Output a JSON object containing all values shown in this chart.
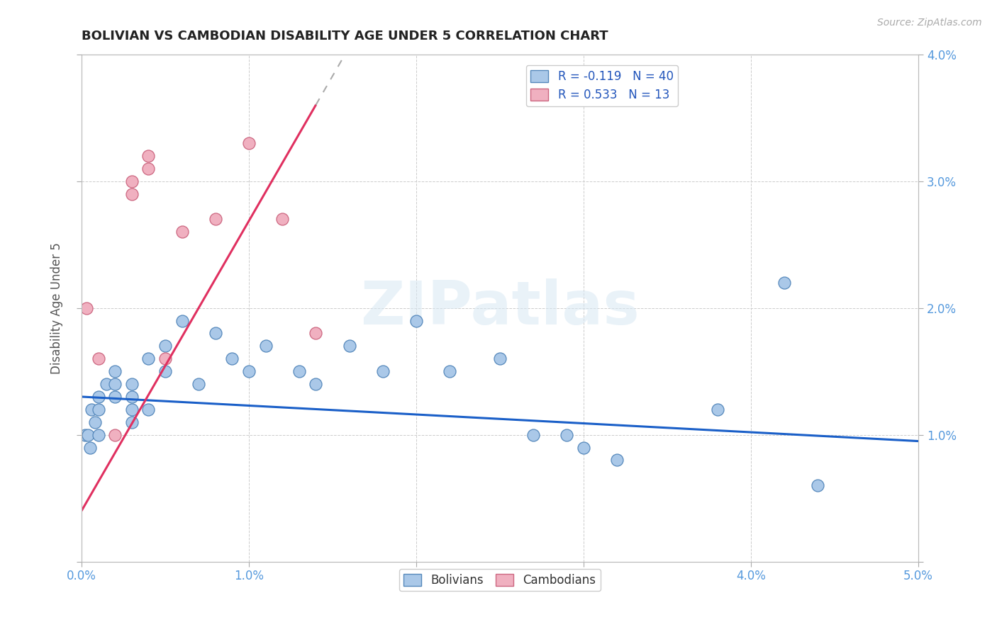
{
  "title": "BOLIVIAN VS CAMBODIAN DISABILITY AGE UNDER 5 CORRELATION CHART",
  "source": "Source: ZipAtlas.com",
  "ylabel": "Disability Age Under 5",
  "xlim": [
    0.0,
    0.05
  ],
  "ylim": [
    0.0,
    0.04
  ],
  "xticks": [
    0.0,
    0.01,
    0.02,
    0.03,
    0.04,
    0.05
  ],
  "yticks": [
    0.0,
    0.01,
    0.02,
    0.03,
    0.04
  ],
  "xtick_labels": [
    "0.0%",
    "1.0%",
    "2.0%",
    "3.0%",
    "4.0%",
    "5.0%"
  ],
  "ytick_labels_right": [
    "",
    "1.0%",
    "2.0%",
    "3.0%",
    "4.0%"
  ],
  "bolivian_color": "#aac8e8",
  "cambodian_color": "#f0b0c0",
  "bolivian_edge": "#5588bb",
  "cambodian_edge": "#cc6680",
  "trend_bolivian_color": "#1a5fc8",
  "trend_cambodian_color": "#e03060",
  "R_bolivian": -0.119,
  "N_bolivian": 40,
  "R_cambodian": 0.533,
  "N_cambodian": 13,
  "bolivian_x": [
    0.0002,
    0.0004,
    0.0005,
    0.0006,
    0.0008,
    0.001,
    0.001,
    0.001,
    0.0015,
    0.002,
    0.002,
    0.002,
    0.003,
    0.003,
    0.003,
    0.003,
    0.004,
    0.004,
    0.005,
    0.005,
    0.006,
    0.007,
    0.008,
    0.009,
    0.01,
    0.011,
    0.013,
    0.014,
    0.016,
    0.018,
    0.02,
    0.022,
    0.025,
    0.027,
    0.029,
    0.03,
    0.032,
    0.038,
    0.042,
    0.044
  ],
  "bolivian_y": [
    0.01,
    0.01,
    0.009,
    0.012,
    0.011,
    0.013,
    0.012,
    0.01,
    0.014,
    0.015,
    0.014,
    0.013,
    0.014,
    0.013,
    0.012,
    0.011,
    0.016,
    0.012,
    0.017,
    0.015,
    0.019,
    0.014,
    0.018,
    0.016,
    0.015,
    0.017,
    0.015,
    0.014,
    0.017,
    0.015,
    0.019,
    0.015,
    0.016,
    0.01,
    0.01,
    0.009,
    0.008,
    0.012,
    0.022,
    0.006
  ],
  "cambodian_x": [
    0.0003,
    0.001,
    0.002,
    0.003,
    0.003,
    0.004,
    0.004,
    0.005,
    0.006,
    0.008,
    0.01,
    0.012,
    0.014
  ],
  "cambodian_y": [
    0.02,
    0.016,
    0.01,
    0.03,
    0.029,
    0.032,
    0.031,
    0.016,
    0.026,
    0.027,
    0.033,
    0.027,
    0.018
  ],
  "trend_bolivian_x0": 0.0,
  "trend_bolivian_y0": 0.013,
  "trend_bolivian_x1": 0.05,
  "trend_bolivian_y1": 0.0095,
  "trend_cambodian_x0": 0.0,
  "trend_cambodian_y0": 0.004,
  "trend_cambodian_x1": 0.014,
  "trend_cambodian_y1": 0.036
}
